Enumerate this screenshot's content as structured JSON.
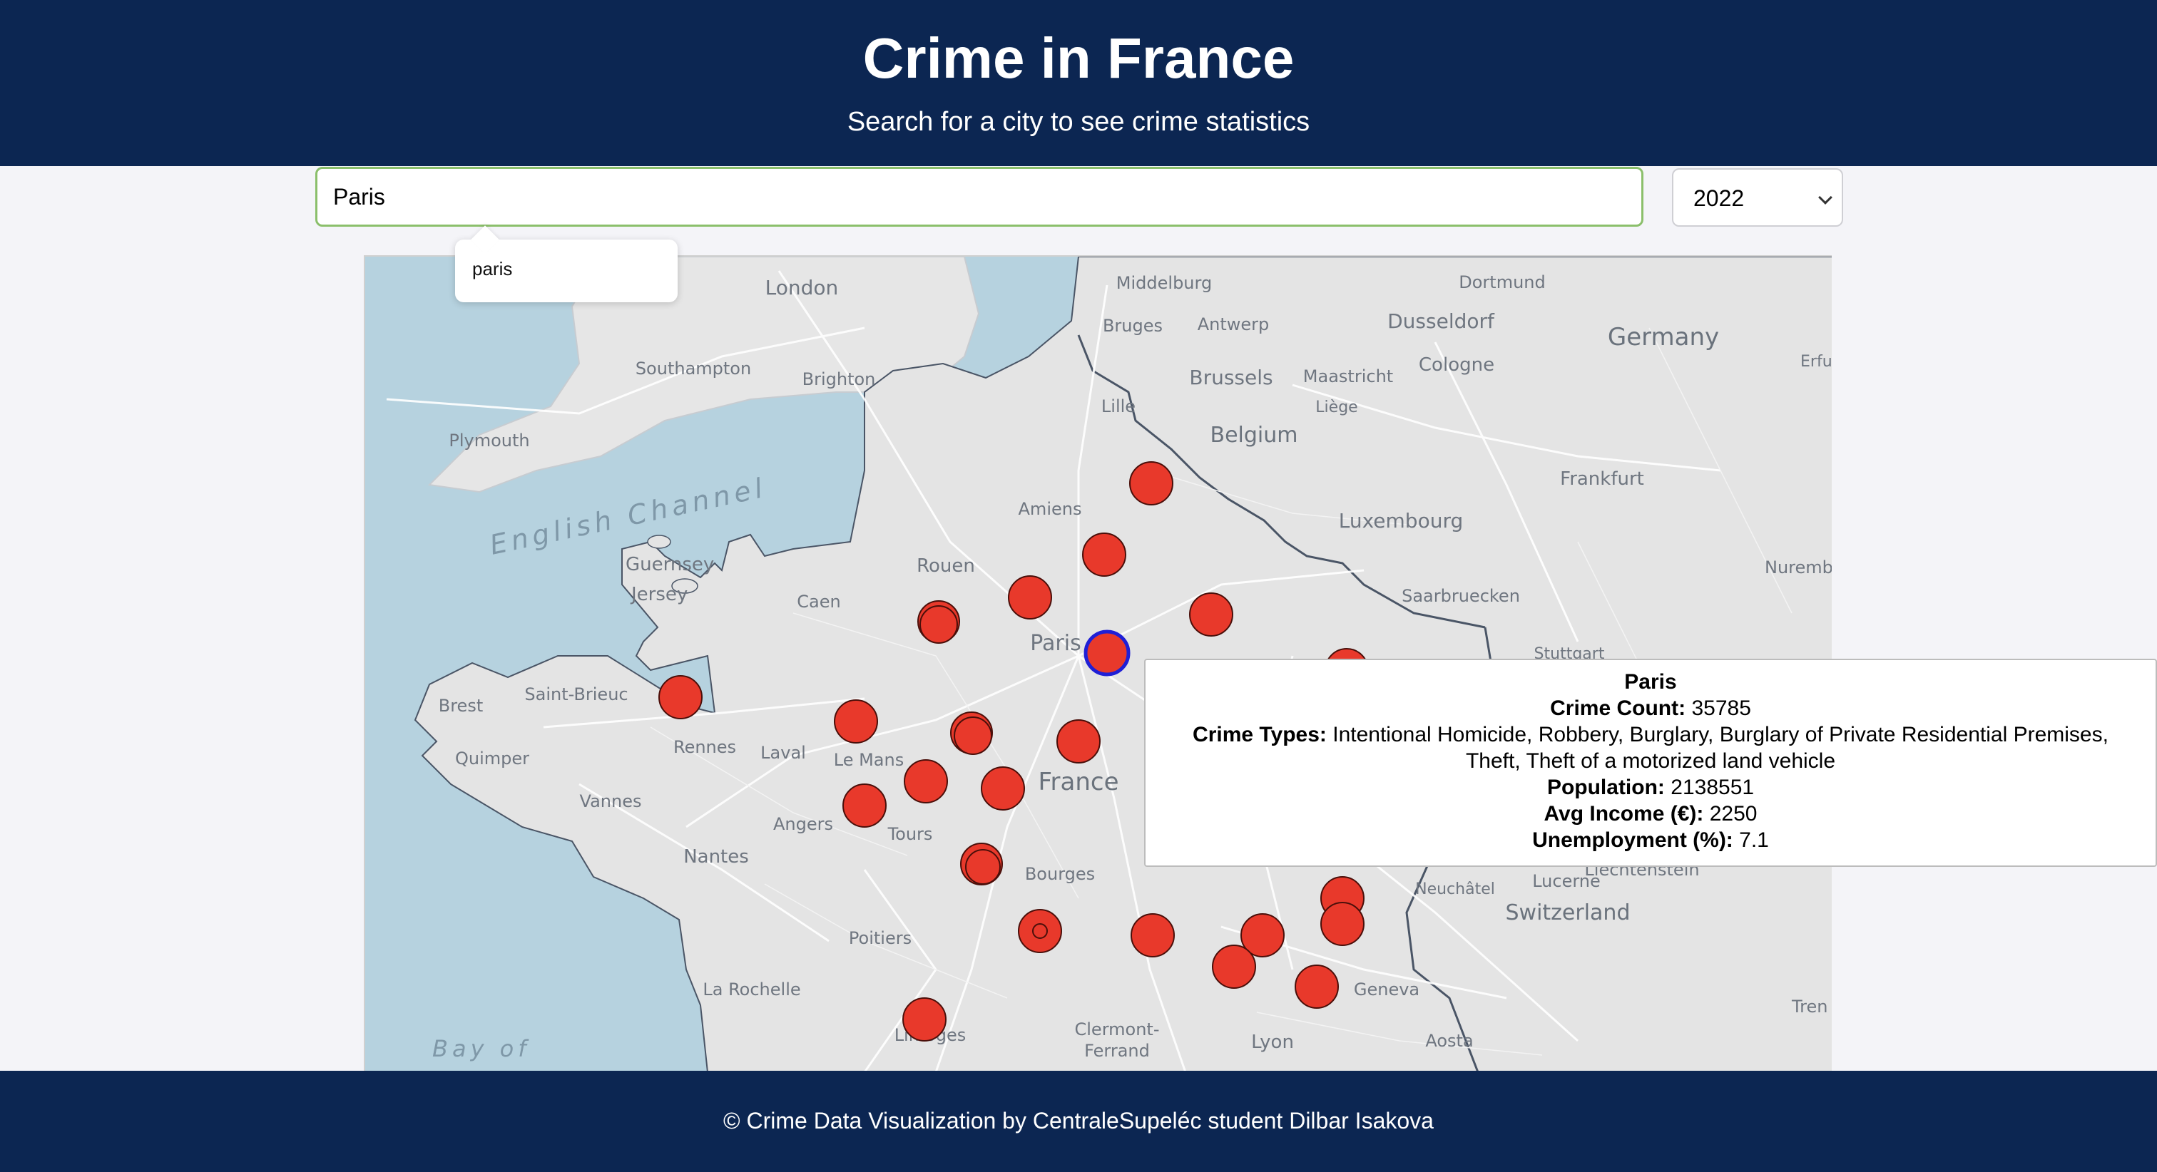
{
  "header": {
    "title": "Crime in France",
    "subtitle": "Search for a city to see crime statistics"
  },
  "search": {
    "value": "Paris",
    "suggestion": "paris"
  },
  "year_select": {
    "selected": "2022"
  },
  "map": {
    "labels": {
      "london": "London",
      "southampton": "Southampton",
      "brighton": "Brighton",
      "plymouth": "Plymouth",
      "english_channel": "English Channel",
      "guernsey": "Guernsey",
      "jersey": "Jersey",
      "middelburg": "Middelburg",
      "bruges": "Bruges",
      "antwerp": "Antwerp",
      "brussels": "Brussels",
      "maastricht": "Maastricht",
      "liege": "Liège",
      "lille": "Lille",
      "belgium": "Belgium",
      "dortmund": "Dortmund",
      "dusseldorf": "Dusseldorf",
      "cologne": "Cologne",
      "germany": "Germany",
      "erfurt": "Erfur",
      "frankfurt": "Frankfurt",
      "luxembourg": "Luxembourg",
      "nuremberg": "Nuremb",
      "saarbrucken": "Saarbruecken",
      "stuttgart": "Stuttgart",
      "amiens": "Amiens",
      "rouen": "Rouen",
      "caen": "Caen",
      "paris": "Paris",
      "brest": "Brest",
      "saint_brieuc": "Saint-Brieuc",
      "quimper": "Quimper",
      "rennes": "Rennes",
      "laval": "Laval",
      "le_mans": "Le Mans",
      "vannes": "Vannes",
      "angers": "Angers",
      "tours": "Tours",
      "nantes": "Nantes",
      "france": "France",
      "bourges": "Bourges",
      "poitiers": "Poitiers",
      "la_rochelle": "La Rochelle",
      "limoges": "Limoges",
      "clermont_ferrand_1": "Clermont-",
      "clermont_ferrand_2": "Ferrand",
      "lyon": "Lyon",
      "geneva": "Geneva",
      "aosta": "Aosta",
      "lucerne": "Lucerne",
      "neuchatel": "Neuchâtel",
      "switzerland": "Switzerland",
      "liechtenstein": "Liechtenstein",
      "trento": "Tren",
      "bay_of": "Bay of"
    },
    "marker_color": "#e8392b",
    "selected_marker_stroke": "#1f1fd6"
  },
  "tooltip": {
    "city": "Paris",
    "crime_count_label": "Crime Count:",
    "crime_count": "35785",
    "crime_types_label": "Crime Types:",
    "crime_types_line1": "Intentional Homicide, Robbery, Burglary, Burglary of Private Residential Premises,",
    "crime_types_line2": "Theft, Theft of a motorized land vehicle",
    "population_label": "Population:",
    "population": "2138551",
    "income_label": "Avg Income (€):",
    "income": "2250",
    "unemployment_label": "Unemployment (%):",
    "unemployment": "7.1"
  },
  "footer": {
    "text": "© Crime Data Visualization by CentraleSupeléc student Dilbar Isakova"
  }
}
